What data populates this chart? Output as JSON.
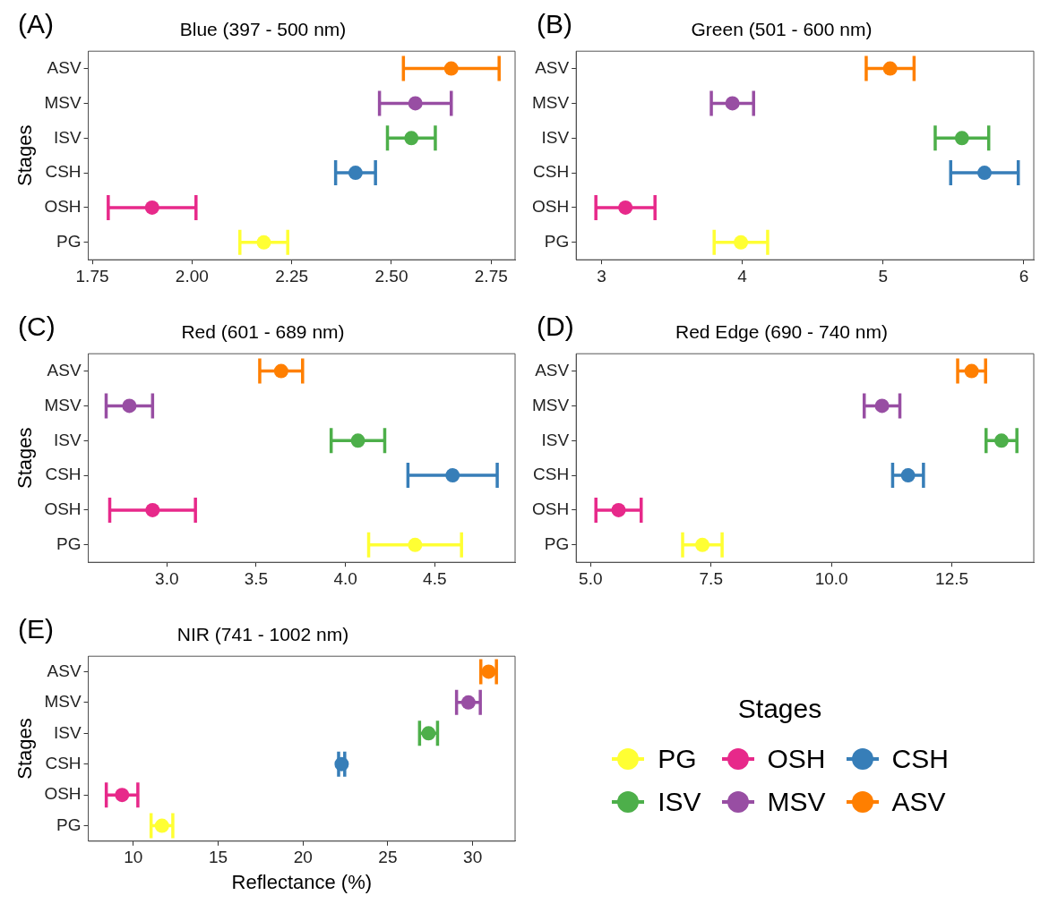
{
  "chart_data": [
    {
      "type": "scatter",
      "orientation": "horizontal",
      "title": "Blue (397 - 500 nm)",
      "annotations": [
        "(A)"
      ],
      "ylabel": "Stages",
      "categories": [
        "ASV",
        "MSV",
        "ISV",
        "CSH",
        "OSH",
        "PG"
      ],
      "xlim": [
        1.74,
        2.81
      ],
      "xticks": [
        {
          "value": 1.75,
          "label": "1.75"
        },
        {
          "value": 2,
          "label": "2.00"
        },
        {
          "value": 2.25,
          "label": "2.25"
        },
        {
          "value": 2.5,
          "label": "2.50"
        },
        {
          "value": 2.75,
          "label": "2.75"
        }
      ],
      "grid": false,
      "legend": false,
      "marker": "circle",
      "series": [
        {
          "color": "#ffff33",
          "values": [
            null,
            null,
            null,
            null,
            null,
            2.18
          ],
          "errors": [
            null,
            null,
            null,
            null,
            null,
            0.06
          ]
        },
        {
          "color": "#e7298a",
          "values": [
            null,
            null,
            null,
            null,
            1.9,
            null
          ],
          "errors": [
            null,
            null,
            null,
            null,
            0.11,
            null
          ]
        },
        {
          "color": "#377eb8",
          "values": [
            null,
            null,
            null,
            2.41,
            null,
            null
          ],
          "errors": [
            null,
            null,
            null,
            0.05,
            null,
            null
          ]
        },
        {
          "color": "#4daf4a",
          "values": [
            null,
            null,
            2.55,
            null,
            null,
            null
          ],
          "errors": [
            null,
            null,
            0.06,
            null,
            null,
            null
          ]
        },
        {
          "color": "#984ea3",
          "values": [
            null,
            2.56,
            null,
            null,
            null,
            null
          ],
          "errors": [
            null,
            0.09,
            null,
            null,
            null,
            null
          ]
        },
        {
          "color": "#ff7f00",
          "values": [
            2.65,
            null,
            null,
            null,
            null,
            null
          ],
          "errors": [
            0.12,
            null,
            null,
            null,
            null,
            null
          ]
        }
      ]
    },
    {
      "type": "scatter",
      "orientation": "horizontal",
      "title": "Green (501 - 600 nm)",
      "annotations": [
        "(B)"
      ],
      "categories": [
        "ASV",
        "MSV",
        "ISV",
        "CSH",
        "OSH",
        "PG"
      ],
      "xlim": [
        2.82,
        6.07
      ],
      "xticks": [
        3,
        4,
        5,
        6
      ],
      "grid": false,
      "legend": false,
      "marker": "circle",
      "series": [
        {
          "color": "#ffff33",
          "values": [
            null,
            null,
            null,
            null,
            null,
            3.99
          ],
          "errors": [
            null,
            null,
            null,
            null,
            null,
            0.19
          ]
        },
        {
          "color": "#e7298a",
          "values": [
            null,
            null,
            null,
            null,
            3.17,
            null
          ],
          "errors": [
            null,
            null,
            null,
            null,
            0.21,
            null
          ]
        },
        {
          "color": "#377eb8",
          "values": [
            null,
            null,
            null,
            5.72,
            null,
            null
          ],
          "errors": [
            null,
            null,
            null,
            0.24,
            null,
            null
          ]
        },
        {
          "color": "#4daf4a",
          "values": [
            null,
            null,
            5.56,
            null,
            null,
            null
          ],
          "errors": [
            null,
            null,
            0.19,
            null,
            null,
            null
          ]
        },
        {
          "color": "#984ea3",
          "values": [
            null,
            3.93,
            null,
            null,
            null,
            null
          ],
          "errors": [
            null,
            0.15,
            null,
            null,
            null,
            null
          ]
        },
        {
          "color": "#ff7f00",
          "values": [
            5.05,
            null,
            null,
            null,
            null,
            null
          ],
          "errors": [
            0.17,
            null,
            null,
            null,
            null,
            null
          ]
        }
      ]
    },
    {
      "type": "scatter",
      "orientation": "horizontal",
      "title": "Red (601 - 689 nm)",
      "annotations": [
        "(C)"
      ],
      "ylabel": "Stages",
      "categories": [
        "ASV",
        "MSV",
        "ISV",
        "CSH",
        "OSH",
        "PG"
      ],
      "xlim": [
        2.56,
        4.95
      ],
      "xticks": [
        {
          "value": 3,
          "label": "3.0"
        },
        {
          "value": 3.5,
          "label": "3.5"
        },
        {
          "value": 4,
          "label": "4.0"
        },
        {
          "value": 4.5,
          "label": "4.5"
        }
      ],
      "grid": false,
      "legend": false,
      "marker": "circle",
      "series": [
        {
          "color": "#ffff33",
          "values": [
            null,
            null,
            null,
            null,
            null,
            4.39
          ],
          "errors": [
            null,
            null,
            null,
            null,
            null,
            0.26
          ]
        },
        {
          "color": "#e7298a",
          "values": [
            null,
            null,
            null,
            null,
            2.92,
            null
          ],
          "errors": [
            null,
            null,
            null,
            null,
            0.24,
            null
          ]
        },
        {
          "color": "#377eb8",
          "values": [
            null,
            null,
            null,
            4.6,
            null,
            null
          ],
          "errors": [
            null,
            null,
            null,
            0.25,
            null,
            null
          ]
        },
        {
          "color": "#4daf4a",
          "values": [
            null,
            null,
            4.07,
            null,
            null,
            null
          ],
          "errors": [
            null,
            null,
            0.15,
            null,
            null,
            null
          ]
        },
        {
          "color": "#984ea3",
          "values": [
            null,
            2.79,
            null,
            null,
            null,
            null
          ],
          "errors": [
            null,
            0.13,
            null,
            null,
            null,
            null
          ]
        },
        {
          "color": "#ff7f00",
          "values": [
            3.64,
            null,
            null,
            null,
            null,
            null
          ],
          "errors": [
            0.12,
            null,
            null,
            null,
            null,
            null
          ]
        }
      ]
    },
    {
      "type": "scatter",
      "orientation": "horizontal",
      "title": "Red Edge (690 - 740 nm)",
      "annotations": [
        "(D)"
      ],
      "categories": [
        "ASV",
        "MSV",
        "ISV",
        "CSH",
        "OSH",
        "PG"
      ],
      "xlim": [
        4.7,
        14.2
      ],
      "xticks": [
        {
          "value": 5,
          "label": "5.0"
        },
        {
          "value": 7.5,
          "label": "7.5"
        },
        {
          "value": 10,
          "label": "10.0"
        },
        {
          "value": 12.5,
          "label": "12.5"
        }
      ],
      "grid": false,
      "legend": false,
      "marker": "circle",
      "series": [
        {
          "color": "#ffff33",
          "values": [
            null,
            null,
            null,
            null,
            null,
            7.32
          ],
          "errors": [
            null,
            null,
            null,
            null,
            null,
            0.41
          ]
        },
        {
          "color": "#e7298a",
          "values": [
            null,
            null,
            null,
            null,
            5.58,
            null
          ],
          "errors": [
            null,
            null,
            null,
            null,
            0.47,
            null
          ]
        },
        {
          "color": "#377eb8",
          "values": [
            null,
            null,
            null,
            11.59,
            null,
            null
          ],
          "errors": [
            null,
            null,
            null,
            0.32,
            null,
            null
          ]
        },
        {
          "color": "#4daf4a",
          "values": [
            null,
            null,
            13.53,
            null,
            null,
            null
          ],
          "errors": [
            null,
            null,
            0.32,
            null,
            null,
            null
          ]
        },
        {
          "color": "#984ea3",
          "values": [
            null,
            11.05,
            null,
            null,
            null,
            null
          ],
          "errors": [
            null,
            0.37,
            null,
            null,
            null,
            null
          ]
        },
        {
          "color": "#ff7f00",
          "values": [
            12.91,
            null,
            null,
            null,
            null,
            null
          ],
          "errors": [
            0.29,
            null,
            null,
            null,
            null,
            null
          ]
        }
      ]
    },
    {
      "type": "scatter",
      "orientation": "horizontal",
      "title": "NIR (741 - 1002 nm)",
      "annotations": [
        "(E)"
      ],
      "ylabel": "Stages",
      "xlabel": "Reflectance (%)",
      "legend_title": "Stages",
      "categories": [
        "ASV",
        "MSV",
        "ISV",
        "CSH",
        "OSH",
        "PG"
      ],
      "xlim": [
        7.35,
        32.5
      ],
      "xticks": [
        10,
        15,
        20,
        25,
        30
      ],
      "grid": false,
      "legend": "right",
      "marker": "circle",
      "series": [
        {
          "name": "PG",
          "color": "#ffff33",
          "values": [
            null,
            null,
            null,
            null,
            null,
            11.69
          ],
          "errors": [
            null,
            null,
            null,
            null,
            null,
            0.64
          ]
        },
        {
          "name": "OSH",
          "color": "#e7298a",
          "values": [
            null,
            null,
            null,
            null,
            9.34,
            null
          ],
          "errors": [
            null,
            null,
            null,
            null,
            0.93,
            null
          ]
        },
        {
          "name": "CSH",
          "color": "#377eb8",
          "values": [
            null,
            null,
            null,
            22.28,
            null,
            null
          ],
          "errors": [
            null,
            null,
            null,
            0.18,
            null,
            null
          ]
        },
        {
          "name": "ISV",
          "color": "#4daf4a",
          "values": [
            null,
            null,
            27.4,
            null,
            null,
            null
          ],
          "errors": [
            null,
            null,
            0.53,
            null,
            null,
            null
          ]
        },
        {
          "name": "MSV",
          "color": "#984ea3",
          "values": [
            null,
            29.75,
            null,
            null,
            null,
            null
          ],
          "errors": [
            null,
            0.7,
            null,
            null,
            null,
            null
          ]
        },
        {
          "name": "ASV",
          "color": "#ff7f00",
          "values": [
            30.94,
            null,
            null,
            null,
            null,
            null
          ],
          "errors": [
            0.46,
            null,
            null,
            null,
            null,
            null
          ]
        }
      ]
    }
  ]
}
